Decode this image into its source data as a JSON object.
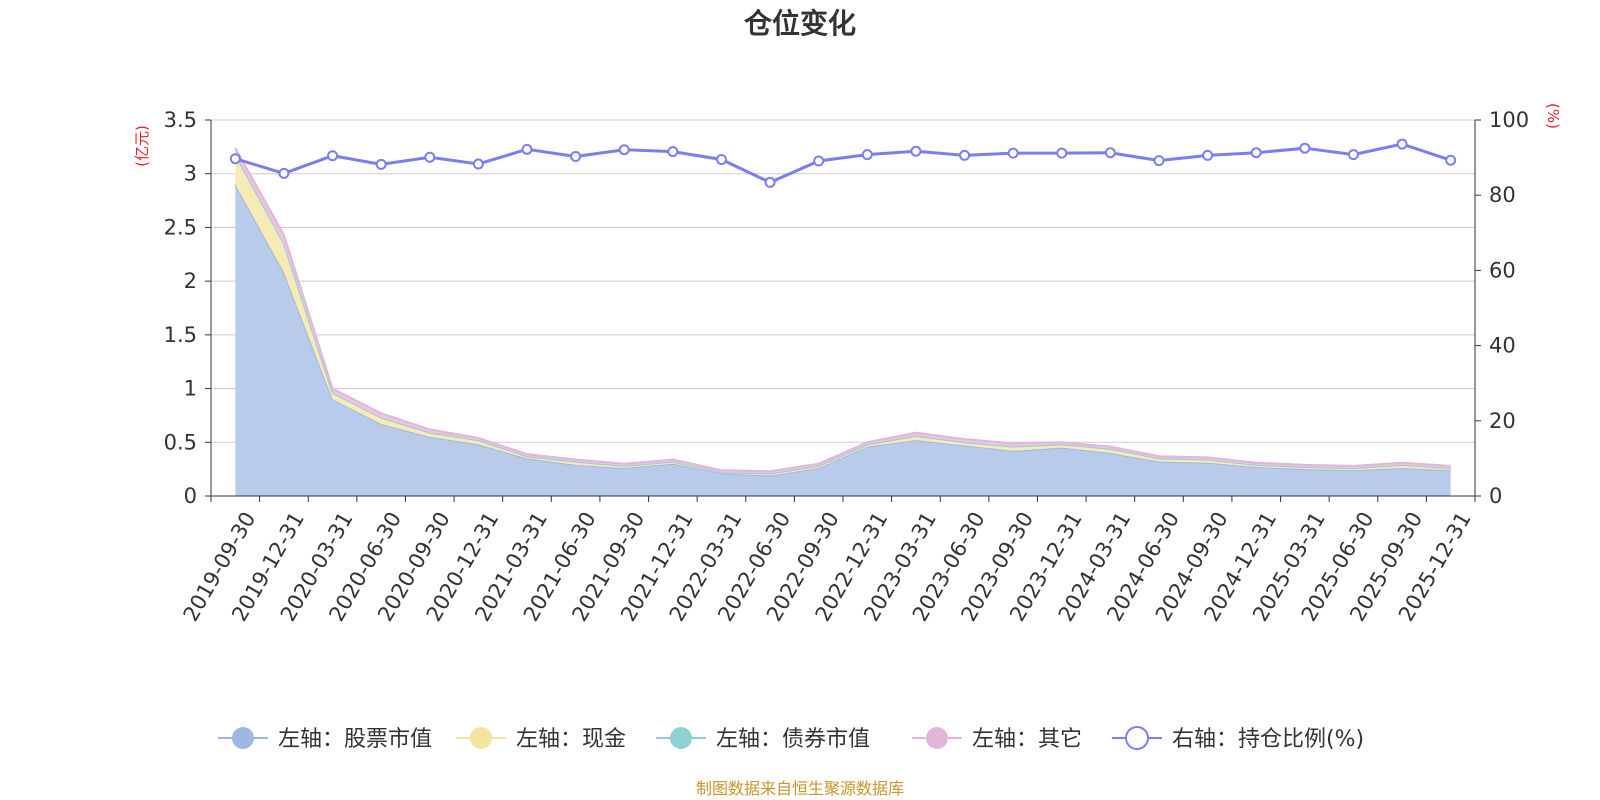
{
  "chart_data": {
    "type": "area",
    "title": "仓位变化",
    "left_axis_unit": "(亿元)",
    "right_axis_unit": "(%)",
    "source_note": "制图数据来自恒生聚源数据库",
    "y_left": {
      "min": 0,
      "max": 3.5,
      "ticks": [
        "0",
        "0.5",
        "1",
        "1.5",
        "2",
        "2.5",
        "3",
        "3.5"
      ]
    },
    "y_right": {
      "min": 0,
      "max": 100,
      "ticks": [
        "0",
        "20",
        "40",
        "60",
        "80",
        "100"
      ]
    },
    "grid": true,
    "legend_position": "bottom",
    "categories": [
      "2019-09-30",
      "2019-12-31",
      "2020-03-31",
      "2020-06-30",
      "2020-09-30",
      "2020-12-31",
      "2021-03-31",
      "2021-06-30",
      "2021-09-30",
      "2021-12-31",
      "2022-03-31",
      "2022-06-30",
      "2022-09-30",
      "2022-12-31",
      "2023-03-31",
      "2023-06-30",
      "2023-09-30",
      "2023-12-31",
      "2024-03-31",
      "2024-06-30",
      "2024-09-30",
      "2024-12-31",
      "2025-03-31",
      "2025-06-30",
      "2025-09-30",
      "2025-12-31"
    ],
    "series": [
      {
        "name": "左轴：股票市值",
        "axis": "left",
        "color": "#9db8e3",
        "fill": "#b8cbea",
        "values": [
          2.9,
          2.08,
          0.9,
          0.67,
          0.55,
          0.48,
          0.35,
          0.29,
          0.26,
          0.3,
          0.21,
          0.19,
          0.26,
          0.46,
          0.52,
          0.47,
          0.42,
          0.45,
          0.4,
          0.32,
          0.31,
          0.27,
          0.25,
          0.24,
          0.26,
          0.24
        ]
      },
      {
        "name": "左轴：现金",
        "axis": "left",
        "color": "#f5e3a0",
        "fill": "#f7ebb5",
        "values": [
          0.28,
          0.27,
          0.06,
          0.06,
          0.04,
          0.04,
          0.02,
          0.03,
          0.02,
          0.02,
          0.01,
          0.02,
          0.02,
          0.02,
          0.04,
          0.03,
          0.04,
          0.03,
          0.04,
          0.03,
          0.03,
          0.02,
          0.02,
          0.02,
          0.03,
          0.02
        ]
      },
      {
        "name": "左轴：债券市值",
        "axis": "left",
        "color": "#8fd0d4",
        "fill": "#b3e0e2",
        "values": [
          0,
          0,
          0,
          0,
          0,
          0,
          0,
          0,
          0,
          0,
          0,
          0,
          0,
          0,
          0,
          0,
          0,
          0,
          0,
          0,
          0,
          0,
          0,
          0,
          0,
          0
        ]
      },
      {
        "name": "左轴：其它",
        "axis": "left",
        "color": "#e4b5da",
        "fill": "#ecc4e3",
        "values": [
          0.06,
          0.08,
          0.04,
          0.04,
          0.03,
          0.02,
          0.02,
          0.02,
          0.02,
          0.02,
          0.02,
          0.02,
          0.02,
          0.02,
          0.03,
          0.03,
          0.03,
          0.02,
          0.02,
          0.02,
          0.02,
          0.02,
          0.02,
          0.02,
          0.02,
          0.02
        ]
      },
      {
        "name": "右轴：持仓比例(%)",
        "axis": "right",
        "color": "#7b7ef2",
        "fill": "none",
        "values": [
          89.7,
          85.8,
          90.5,
          88.2,
          90.1,
          88.3,
          92.2,
          90.3,
          92.1,
          91.6,
          89.5,
          83.4,
          89.1,
          90.8,
          91.7,
          90.6,
          91.2,
          91.2,
          91.3,
          89.2,
          90.6,
          91.3,
          92.5,
          90.8,
          93.6,
          89.3
        ]
      }
    ]
  }
}
